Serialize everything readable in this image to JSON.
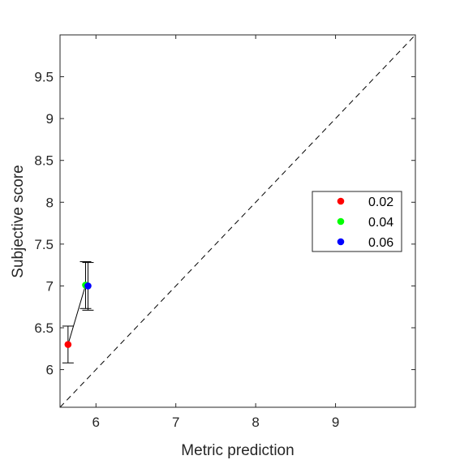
{
  "chart_data": {
    "type": "scatter",
    "title": "",
    "xlabel": "Metric prediction",
    "ylabel": "Subjective score",
    "xlim": [
      5.55,
      10.0
    ],
    "ylim": [
      5.55,
      10.0
    ],
    "xticks": [
      6,
      7,
      8,
      9
    ],
    "yticks": [
      6,
      6.5,
      7,
      7.5,
      8,
      8.5,
      9,
      9.5
    ],
    "x_tick_labels": [
      "6",
      "7",
      "8",
      "9"
    ],
    "y_tick_labels": [
      "6",
      "6.5",
      "7",
      "7.5",
      "8",
      "8.5",
      "9",
      "9.5"
    ],
    "grid": false,
    "legend_position": "right",
    "reference_line": {
      "style": "dashed",
      "from": [
        5.55,
        5.55
      ],
      "to": [
        10.0,
        10.0
      ]
    },
    "connecting_line": true,
    "series": [
      {
        "name": "0.02",
        "color": "#ff0000",
        "x": 5.65,
        "y": 6.3,
        "err_low": 6.08,
        "err_high": 6.52
      },
      {
        "name": "0.04",
        "color": "#00ff00",
        "x": 5.87,
        "y": 7.01,
        "err_low": 6.73,
        "err_high": 7.29
      },
      {
        "name": "0.06",
        "color": "#0000ff",
        "x": 5.9,
        "y": 7.0,
        "err_low": 6.71,
        "err_high": 7.28
      }
    ]
  }
}
